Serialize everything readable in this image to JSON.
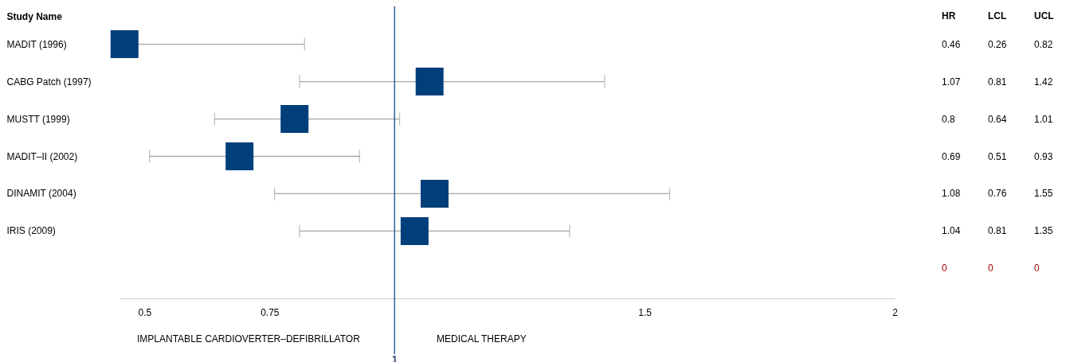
{
  "chart_data": {
    "type": "scatter",
    "orientation": "horizontal",
    "ylabel": "Study Name",
    "categories": [
      "MADIT (1996)",
      "CABG Patch (1997)",
      "MUSTT (1999)",
      "MADIT–II (2002)",
      "DINAMIT (2004)",
      "IRIS (2009)",
      null
    ],
    "values": [
      0.46,
      1.07,
      0.8,
      0.69,
      1.08,
      1.04,
      null
    ],
    "errors": [
      [
        0.26,
        0.82
      ],
      [
        0.81,
        1.42
      ],
      [
        0.64,
        1.01
      ],
      [
        0.51,
        0.93
      ],
      [
        0.76,
        1.55
      ],
      [
        0.81,
        1.35
      ],
      null
    ],
    "color": "#003f7a",
    "marker": "square",
    "xlim": [
      0.45,
      2
    ],
    "xticks": [
      0.5,
      0.75,
      1.5,
      2
    ],
    "ref_lines": [
      {
        "axis": "x",
        "value": 1,
        "label": "1",
        "color": "#2e6196"
      }
    ],
    "annotations": [
      "HR",
      "LCL",
      "UCL",
      "IMPLANTABLE CARDIOVERTER–DEFIBRILLATOR",
      "MEDICAL THERAPY",
      "0.46",
      "0.26",
      "0.82",
      "1.07",
      "0.81",
      "1.42",
      "0.8",
      "0.64",
      "1.01",
      "0.69",
      "0.51",
      "0.93",
      "1.08",
      "0.76",
      "1.55",
      "1.04",
      "0.81",
      "1.35",
      "0",
      "0",
      "0"
    ]
  }
}
